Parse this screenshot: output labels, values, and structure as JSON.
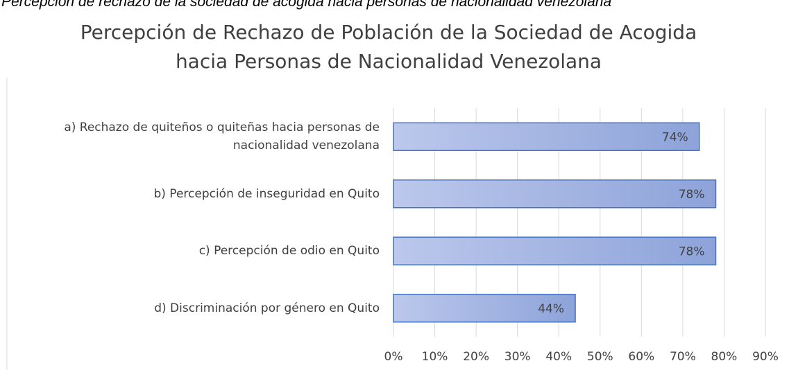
{
  "chart_data": {
    "type": "bar",
    "orientation": "horizontal",
    "caption": "Percepción de rechazo de la sociedad de acogida hacia personas de nacionalidad venezolana",
    "title": "Percepción de Rechazo de Población de la Sociedad de Acogida hacia Personas de Nacionalidad Venezolana",
    "categories": [
      "a) Rechazo de quiteños o quiteñas hacia personas de nacionalidad venezolana",
      "b) Percepción de inseguridad en Quito",
      "c) Percepción de odio en Quito",
      "d) Discriminación por género en Quito"
    ],
    "values": [
      74,
      78,
      78,
      44
    ],
    "value_labels": [
      "74%",
      "78%",
      "78%",
      "44%"
    ],
    "color": "#4472c4",
    "xlim": [
      0,
      90
    ],
    "xticks": [
      {
        "value": 0,
        "label": "0%"
      },
      {
        "value": 10,
        "label": "10%"
      },
      {
        "value": 20,
        "label": "20%"
      },
      {
        "value": 30,
        "label": "30%"
      },
      {
        "value": 40,
        "label": "40%"
      },
      {
        "value": 50,
        "label": "50%"
      },
      {
        "value": 60,
        "label": "60%"
      },
      {
        "value": 70,
        "label": "70%"
      },
      {
        "value": 80,
        "label": "80%"
      },
      {
        "value": 90,
        "label": "90%"
      }
    ],
    "grid": true
  }
}
